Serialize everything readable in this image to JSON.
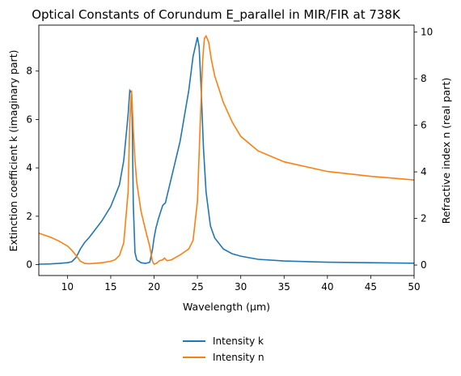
{
  "chart_data": {
    "type": "line",
    "title": "Optical Constants of Corundum E_parallel in MIR/FIR at 738K",
    "xlabel": "Wavelength (μm)",
    "ylabel_left": "Extinction coefficient k (imaginary part)",
    "ylabel_right": "Refractive index n (real part)",
    "xlim": [
      6.7,
      50
    ],
    "ylim_left": [
      -0.45,
      9.9
    ],
    "ylim_right": [
      -0.45,
      10.3
    ],
    "xticks": [
      "10",
      "15",
      "20",
      "25",
      "30",
      "35",
      "40",
      "45",
      "50"
    ],
    "yticks_left": [
      "0",
      "2",
      "4",
      "6",
      "8"
    ],
    "yticks_right": [
      "0",
      "2",
      "4",
      "6",
      "8",
      "10"
    ],
    "legend_position": "below",
    "grid": false,
    "series": [
      {
        "name": "Intensity k",
        "color": "#1f77b4",
        "axis": "left",
        "x": [
          6.7,
          8,
          9,
          10,
          10.5,
          11,
          11.5,
          12,
          12.5,
          13,
          14,
          15,
          16,
          16.5,
          17,
          17.2,
          17.4,
          17.5,
          17.6,
          17.8,
          18,
          18.5,
          19,
          19.5,
          19.8,
          20,
          20.2,
          20.5,
          21,
          21.3,
          21.5,
          22,
          23,
          24,
          24.5,
          25,
          25.2,
          25.4,
          25.7,
          26,
          26.5,
          27,
          28,
          29,
          30,
          32,
          35,
          40,
          45,
          50
        ],
        "y": [
          0.02,
          0.03,
          0.05,
          0.08,
          0.12,
          0.3,
          0.65,
          0.92,
          1.12,
          1.35,
          1.82,
          2.4,
          3.3,
          4.3,
          6.2,
          7.2,
          7.1,
          5.5,
          2.5,
          0.5,
          0.2,
          0.08,
          0.05,
          0.1,
          0.6,
          1.1,
          1.5,
          1.9,
          2.45,
          2.55,
          2.85,
          3.6,
          5.1,
          7.2,
          8.6,
          9.4,
          9.0,
          7.5,
          4.8,
          3.0,
          1.6,
          1.1,
          0.65,
          0.45,
          0.35,
          0.22,
          0.15,
          0.1,
          0.08,
          0.06
        ]
      },
      {
        "name": "Intensity n",
        "color": "#ff7f0e",
        "axis": "left",
        "x": [
          6.7,
          8,
          9,
          10,
          10.5,
          11,
          11.5,
          12,
          12.5,
          13,
          14,
          15,
          15.5,
          16,
          16.5,
          17,
          17.2,
          17.4,
          17.6,
          17.8,
          18,
          18.5,
          19,
          19.5,
          19.8,
          20,
          20.3,
          20.6,
          21,
          21.2,
          21.5,
          22,
          23,
          24,
          24.5,
          25,
          25.3,
          25.6,
          25.8,
          26,
          26.3,
          26.6,
          27,
          28,
          29,
          30,
          32,
          35,
          40,
          45,
          50
        ],
        "y": [
          1.3,
          1.14,
          0.98,
          0.77,
          0.6,
          0.38,
          0.14,
          0.05,
          0.04,
          0.05,
          0.08,
          0.14,
          0.2,
          0.38,
          0.9,
          3.0,
          6.0,
          7.2,
          5.6,
          4.3,
          3.4,
          2.2,
          1.45,
          0.75,
          0.15,
          0.02,
          0.06,
          0.16,
          0.2,
          0.27,
          0.16,
          0.2,
          0.4,
          0.65,
          1.0,
          2.6,
          5.6,
          8.4,
          9.35,
          9.45,
          9.2,
          8.5,
          7.8,
          6.7,
          5.9,
          5.3,
          4.7,
          4.25,
          3.85,
          3.65,
          3.5
        ]
      }
    ]
  }
}
